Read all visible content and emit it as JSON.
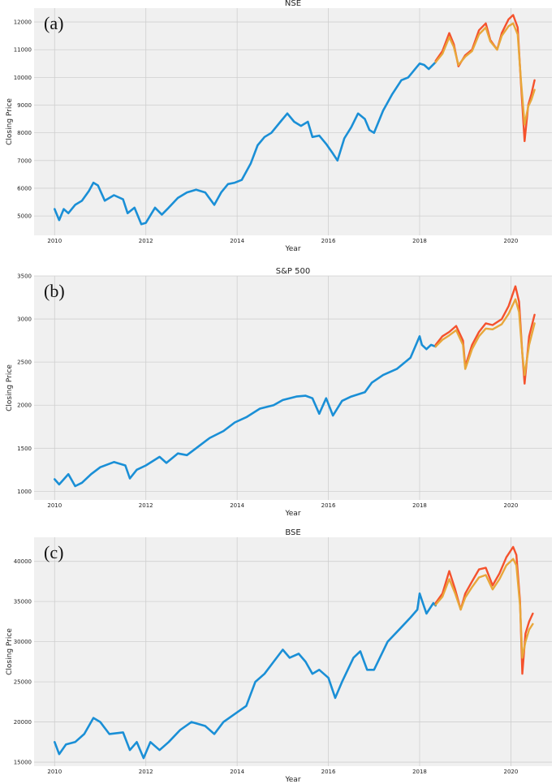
{
  "colors": {
    "background": "#f0f0f0",
    "grid": "#cfcfcf",
    "train": "#1a8fd6",
    "valid": "#f5522d",
    "predictions": "#e8a73a"
  },
  "chart_data": [
    {
      "type": "line",
      "panel_tag": "(a)",
      "title": "NSE",
      "xlabel": "Year",
      "ylabel": "Closing Price",
      "xlim": [
        2009.55,
        2020.9
      ],
      "ylim": [
        4300,
        12500
      ],
      "grid": true,
      "x_ticks": [
        2010,
        2012,
        2014,
        2016,
        2018,
        2020
      ],
      "x_tick_labels": [
        "2010",
        "2012",
        "2014",
        "2016",
        "2018",
        "2020"
      ],
      "y_ticks": [
        5000,
        6000,
        7000,
        8000,
        9000,
        10000,
        11000,
        12000
      ],
      "y_tick_labels": [
        "5000",
        "6000",
        "7000",
        "8000",
        "9000",
        "10000",
        "11000",
        "12000"
      ],
      "series": [
        {
          "role": "train",
          "x": [
            2010.0,
            2010.1,
            2010.2,
            2010.3,
            2010.45,
            2010.6,
            2010.75,
            2010.85,
            2010.95,
            2011.1,
            2011.3,
            2011.5,
            2011.6,
            2011.75,
            2011.9,
            2012.0,
            2012.2,
            2012.35,
            2012.5,
            2012.7,
            2012.9,
            2013.1,
            2013.3,
            2013.5,
            2013.65,
            2013.8,
            2013.95,
            2014.1,
            2014.3,
            2014.45,
            2014.6,
            2014.75,
            2014.95,
            2015.1,
            2015.25,
            2015.4,
            2015.55,
            2015.65,
            2015.8,
            2015.95,
            2016.1,
            2016.2,
            2016.35,
            2016.5,
            2016.65,
            2016.8,
            2016.9,
            2017.0,
            2017.2,
            2017.4,
            2017.6,
            2017.75,
            2017.9,
            2018.0,
            2018.1,
            2018.2,
            2018.35
          ],
          "y": [
            5250,
            4850,
            5250,
            5100,
            5400,
            5550,
            5900,
            6200,
            6100,
            5550,
            5750,
            5600,
            5100,
            5300,
            4700,
            4750,
            5300,
            5050,
            5300,
            5650,
            5850,
            5950,
            5850,
            5400,
            5850,
            6150,
            6200,
            6300,
            6900,
            7550,
            7850,
            8000,
            8400,
            8700,
            8400,
            8250,
            8400,
            7850,
            7900,
            7600,
            7250,
            7000,
            7800,
            8200,
            8700,
            8500,
            8100,
            8000,
            8800,
            9400,
            9900,
            10000,
            10300,
            10500,
            10450,
            10300,
            10550
          ]
        },
        {
          "role": "valid",
          "x": [
            2018.35,
            2018.5,
            2018.65,
            2018.75,
            2018.85,
            2019.0,
            2019.15,
            2019.3,
            2019.45,
            2019.55,
            2019.7,
            2019.8,
            2019.95,
            2020.05,
            2020.15,
            2020.22,
            2020.3,
            2020.38,
            2020.45,
            2020.52
          ],
          "y": [
            10600,
            10950,
            11600,
            11200,
            10400,
            10800,
            11000,
            11700,
            11950,
            11350,
            11000,
            11600,
            12100,
            12250,
            11800,
            9800,
            7700,
            9000,
            9400,
            9900
          ]
        },
        {
          "role": "predictions",
          "x": [
            2018.35,
            2018.5,
            2018.65,
            2018.75,
            2018.85,
            2019.0,
            2019.15,
            2019.3,
            2019.45,
            2019.55,
            2019.7,
            2019.8,
            2019.95,
            2020.05,
            2020.15,
            2020.22,
            2020.3,
            2020.38,
            2020.45,
            2020.52
          ],
          "y": [
            10550,
            10850,
            11450,
            11100,
            10450,
            10750,
            10950,
            11550,
            11800,
            11300,
            11000,
            11500,
            11850,
            11950,
            11550,
            9900,
            8300,
            8950,
            9200,
            9550
          ]
        }
      ]
    },
    {
      "type": "line",
      "panel_tag": "(b)",
      "title": "S&P 500",
      "xlabel": "Year",
      "ylabel": "Closing Price",
      "xlim": [
        2009.55,
        2020.9
      ],
      "ylim": [
        900,
        3500
      ],
      "grid": true,
      "x_ticks": [
        2010,
        2012,
        2014,
        2016,
        2018,
        2020
      ],
      "x_tick_labels": [
        "2010",
        "2012",
        "2014",
        "2016",
        "2018",
        "2020"
      ],
      "y_ticks": [
        1000,
        1500,
        2000,
        2500,
        3000,
        3500
      ],
      "y_tick_labels": [
        "1000",
        "1500",
        "2000",
        "2500",
        "3000",
        "3500"
      ],
      "series": [
        {
          "role": "train",
          "x": [
            2010.0,
            2010.1,
            2010.3,
            2010.45,
            2010.6,
            2010.8,
            2011.0,
            2011.3,
            2011.55,
            2011.65,
            2011.8,
            2012.0,
            2012.3,
            2012.45,
            2012.7,
            2012.9,
            2013.1,
            2013.4,
            2013.7,
            2013.95,
            2014.2,
            2014.5,
            2014.8,
            2015.0,
            2015.3,
            2015.5,
            2015.65,
            2015.8,
            2015.95,
            2016.1,
            2016.3,
            2016.5,
            2016.8,
            2016.95,
            2017.2,
            2017.5,
            2017.8,
            2018.0,
            2018.05,
            2018.15,
            2018.25,
            2018.35
          ],
          "y": [
            1140,
            1080,
            1200,
            1060,
            1100,
            1200,
            1280,
            1340,
            1300,
            1150,
            1250,
            1300,
            1400,
            1330,
            1440,
            1420,
            1500,
            1620,
            1700,
            1800,
            1860,
            1960,
            2000,
            2060,
            2100,
            2110,
            2080,
            1900,
            2080,
            1880,
            2050,
            2100,
            2150,
            2260,
            2350,
            2420,
            2550,
            2800,
            2700,
            2650,
            2700,
            2680
          ]
        },
        {
          "role": "valid",
          "x": [
            2018.35,
            2018.5,
            2018.65,
            2018.8,
            2018.95,
            2019.0,
            2019.15,
            2019.3,
            2019.45,
            2019.6,
            2019.8,
            2019.95,
            2020.1,
            2020.18,
            2020.25,
            2020.3,
            2020.4,
            2020.52
          ],
          "y": [
            2700,
            2800,
            2850,
            2920,
            2750,
            2450,
            2700,
            2850,
            2950,
            2930,
            3000,
            3150,
            3380,
            3200,
            2600,
            2250,
            2800,
            3050
          ]
        },
        {
          "role": "predictions",
          "x": [
            2018.35,
            2018.5,
            2018.65,
            2018.8,
            2018.95,
            2019.0,
            2019.15,
            2019.3,
            2019.45,
            2019.6,
            2019.8,
            2019.95,
            2020.1,
            2020.18,
            2020.25,
            2020.3,
            2020.4,
            2020.52
          ],
          "y": [
            2680,
            2760,
            2810,
            2870,
            2700,
            2420,
            2650,
            2800,
            2890,
            2880,
            2940,
            3060,
            3230,
            3080,
            2600,
            2350,
            2700,
            2950
          ]
        }
      ]
    },
    {
      "type": "line",
      "panel_tag": "(c)",
      "title": "BSE",
      "xlabel": "Year",
      "ylabel": "Closing Price",
      "xlim": [
        2009.55,
        2020.9
      ],
      "ylim": [
        14500,
        43000
      ],
      "grid": true,
      "x_ticks": [
        2010,
        2012,
        2014,
        2016,
        2018,
        2020
      ],
      "x_tick_labels": [
        "2010",
        "2012",
        "2014",
        "2016",
        "2018",
        "2020"
      ],
      "y_ticks": [
        15000,
        20000,
        25000,
        30000,
        35000,
        40000
      ],
      "y_tick_labels": [
        "15000",
        "20000",
        "25000",
        "30000",
        "35000",
        "40000"
      ],
      "series": [
        {
          "role": "train",
          "x": [
            2010.0,
            2010.1,
            2010.25,
            2010.45,
            2010.65,
            2010.85,
            2011.0,
            2011.2,
            2011.5,
            2011.65,
            2011.8,
            2011.95,
            2012.1,
            2012.3,
            2012.5,
            2012.75,
            2013.0,
            2013.3,
            2013.5,
            2013.7,
            2013.95,
            2014.2,
            2014.4,
            2014.6,
            2014.8,
            2015.0,
            2015.15,
            2015.35,
            2015.5,
            2015.65,
            2015.8,
            2016.0,
            2016.15,
            2016.3,
            2016.55,
            2016.7,
            2016.85,
            2017.0,
            2017.3,
            2017.55,
            2017.8,
            2017.95,
            2018.0,
            2018.15,
            2018.3,
            2018.35
          ],
          "y": [
            17500,
            16000,
            17200,
            17500,
            18500,
            20500,
            20000,
            18500,
            18700,
            16500,
            17500,
            15500,
            17500,
            16500,
            17500,
            19000,
            20000,
            19500,
            18500,
            20000,
            21000,
            22000,
            25000,
            26000,
            27500,
            29000,
            28000,
            28500,
            27500,
            26000,
            26500,
            25500,
            23000,
            25000,
            28000,
            28800,
            26500,
            26500,
            30000,
            31500,
            33000,
            34000,
            36000,
            33500,
            34800,
            34500
          ]
        },
        {
          "role": "valid",
          "x": [
            2018.35,
            2018.5,
            2018.65,
            2018.78,
            2018.9,
            2019.0,
            2019.15,
            2019.3,
            2019.45,
            2019.6,
            2019.75,
            2019.9,
            2020.05,
            2020.12,
            2020.2,
            2020.25,
            2020.32,
            2020.4,
            2020.48
          ],
          "y": [
            34800,
            36000,
            38800,
            36500,
            34000,
            36000,
            37500,
            39000,
            39200,
            37000,
            38500,
            40500,
            41800,
            40800,
            35000,
            26000,
            31000,
            32500,
            33500
          ]
        },
        {
          "role": "predictions",
          "x": [
            2018.35,
            2018.5,
            2018.65,
            2018.78,
            2018.9,
            2019.0,
            2019.15,
            2019.3,
            2019.45,
            2019.6,
            2019.75,
            2019.9,
            2020.05,
            2020.12,
            2020.2,
            2020.25,
            2020.32,
            2020.4,
            2020.48
          ],
          "y": [
            34600,
            35600,
            37800,
            36000,
            34000,
            35500,
            36800,
            38000,
            38300,
            36500,
            37800,
            39500,
            40300,
            39500,
            34500,
            28000,
            30000,
            31500,
            32200
          ]
        }
      ]
    }
  ]
}
